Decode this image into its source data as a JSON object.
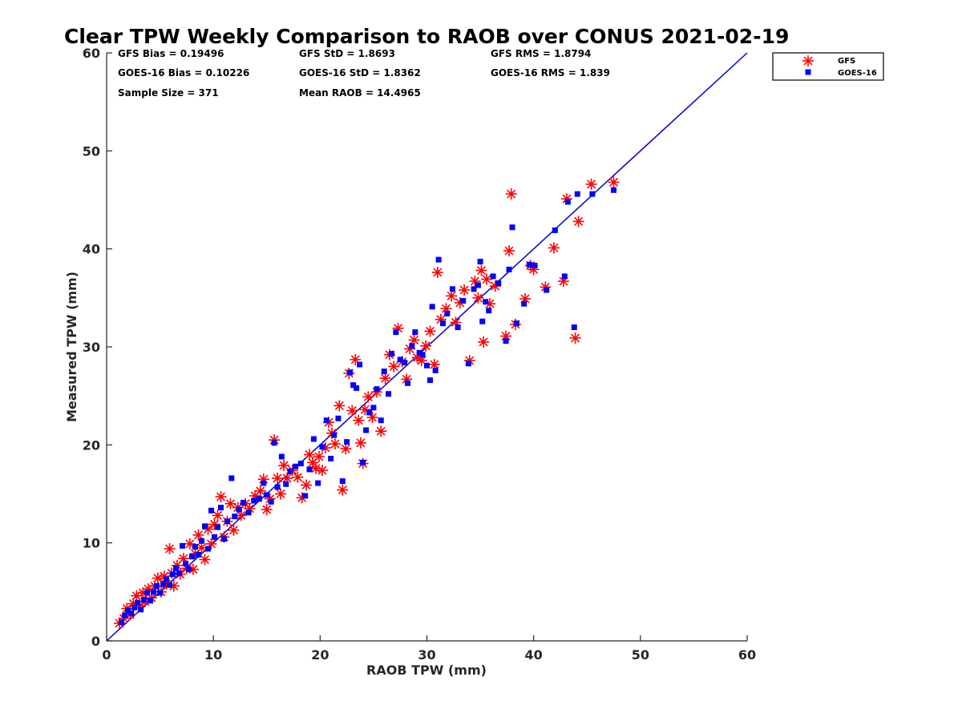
{
  "chart_data": {
    "type": "scatter",
    "title": "Clear TPW Weekly Comparison to RAOB over CONUS 2021-02-19",
    "xlabel": "RAOB TPW (mm)",
    "ylabel": "Measured TPW (mm)",
    "xlim": [
      0,
      60
    ],
    "ylim": [
      0,
      60
    ],
    "xticks": [
      "0",
      "10",
      "20",
      "30",
      "40",
      "50",
      "60"
    ],
    "yticks": [
      "0",
      "10",
      "20",
      "30",
      "40",
      "50",
      "60"
    ],
    "grid": false,
    "legend_position": "top-right (outside plot)",
    "reference_line": {
      "x": [
        0,
        60
      ],
      "y": [
        0,
        60
      ],
      "color": "#0000cc"
    },
    "stats": {
      "gfs_bias": "GFS Bias = 0.19496",
      "goes_bias": "GOES-16 Bias = 0.10226",
      "sample_size": "Sample Size = 371",
      "gfs_std": "GFS StD = 1.8693",
      "goes_std": "GOES-16 StD = 1.8362",
      "mean_raob": "Mean RAOB = 14.4965",
      "gfs_rms": "GFS RMS = 1.8794",
      "goes_rms": "GOES-16 RMS = 1.839"
    },
    "series": [
      {
        "name": "GFS",
        "marker": "asterisk",
        "color": "#ff0000",
        "points": [
          [
            1.2,
            1.8
          ],
          [
            1.6,
            2.3
          ],
          [
            1.9,
            3.3
          ],
          [
            2.2,
            2.7
          ],
          [
            2.5,
            3.8
          ],
          [
            2.8,
            4.6
          ],
          [
            3.1,
            3.6
          ],
          [
            3.4,
            4.9
          ],
          [
            3.6,
            4.0
          ],
          [
            3.9,
            5.3
          ],
          [
            4.2,
            4.4
          ],
          [
            4.5,
            5.6
          ],
          [
            4.8,
            6.4
          ],
          [
            5.1,
            5.0
          ],
          [
            5.4,
            6.6
          ],
          [
            5.6,
            5.8
          ],
          [
            5.9,
            9.4
          ],
          [
            6.1,
            6.9
          ],
          [
            6.3,
            5.6
          ],
          [
            6.6,
            7.7
          ],
          [
            6.9,
            6.8
          ],
          [
            7.2,
            8.4
          ],
          [
            7.5,
            7.4
          ],
          [
            7.8,
            9.9
          ],
          [
            8.1,
            7.3
          ],
          [
            8.3,
            8.9
          ],
          [
            8.6,
            10.8
          ],
          [
            8.9,
            9.5
          ],
          [
            9.2,
            8.3
          ],
          [
            9.5,
            11.4
          ],
          [
            9.8,
            9.9
          ],
          [
            10.1,
            11.9
          ],
          [
            10.4,
            12.8
          ],
          [
            10.7,
            14.7
          ],
          [
            11.0,
            10.6
          ],
          [
            11.3,
            12.2
          ],
          [
            11.6,
            14.0
          ],
          [
            11.9,
            11.3
          ],
          [
            12.3,
            13.6
          ],
          [
            12.6,
            12.8
          ],
          [
            13.0,
            14.0
          ],
          [
            13.4,
            13.5
          ],
          [
            13.9,
            14.8
          ],
          [
            14.4,
            15.3
          ],
          [
            14.7,
            16.5
          ],
          [
            15.0,
            13.4
          ],
          [
            15.3,
            14.5
          ],
          [
            15.7,
            20.5
          ],
          [
            16.0,
            16.6
          ],
          [
            16.3,
            15.0
          ],
          [
            16.6,
            17.9
          ],
          [
            16.9,
            16.6
          ],
          [
            17.4,
            17.4
          ],
          [
            17.9,
            16.7
          ],
          [
            18.3,
            14.6
          ],
          [
            18.7,
            15.9
          ],
          [
            19.0,
            19.0
          ],
          [
            19.3,
            18.2
          ],
          [
            19.6,
            17.6
          ],
          [
            19.9,
            18.8
          ],
          [
            20.2,
            17.4
          ],
          [
            20.5,
            19.7
          ],
          [
            20.8,
            22.3
          ],
          [
            21.1,
            21.2
          ],
          [
            21.4,
            20.1
          ],
          [
            21.8,
            24.0
          ],
          [
            22.1,
            15.4
          ],
          [
            22.4,
            19.6
          ],
          [
            22.7,
            27.3
          ],
          [
            23.0,
            23.5
          ],
          [
            23.3,
            28.7
          ],
          [
            23.6,
            22.5
          ],
          [
            23.8,
            20.2
          ],
          [
            24.0,
            18.1
          ],
          [
            24.2,
            23.6
          ],
          [
            24.5,
            24.9
          ],
          [
            24.9,
            22.8
          ],
          [
            25.3,
            25.4
          ],
          [
            25.7,
            21.4
          ],
          [
            26.1,
            26.8
          ],
          [
            26.5,
            29.2
          ],
          [
            26.9,
            28.0
          ],
          [
            27.3,
            31.9
          ],
          [
            27.7,
            28.5
          ],
          [
            28.1,
            26.7
          ],
          [
            28.4,
            29.8
          ],
          [
            28.8,
            30.7
          ],
          [
            29.1,
            28.9
          ],
          [
            29.5,
            28.6
          ],
          [
            29.9,
            30.1
          ],
          [
            30.3,
            31.6
          ],
          [
            30.7,
            28.2
          ],
          [
            31.0,
            37.6
          ],
          [
            31.3,
            32.8
          ],
          [
            31.8,
            33.9
          ],
          [
            32.3,
            35.2
          ],
          [
            32.7,
            32.5
          ],
          [
            33.1,
            34.5
          ],
          [
            33.5,
            35.8
          ],
          [
            34.0,
            28.6
          ],
          [
            34.5,
            36.7
          ],
          [
            34.8,
            35.0
          ],
          [
            35.1,
            37.8
          ],
          [
            35.3,
            30.5
          ],
          [
            35.6,
            36.9
          ],
          [
            35.9,
            34.4
          ],
          [
            36.4,
            36.2
          ],
          [
            37.4,
            31.1
          ],
          [
            37.7,
            39.8
          ],
          [
            37.9,
            45.6
          ],
          [
            38.3,
            32.3
          ],
          [
            39.2,
            34.9
          ],
          [
            39.7,
            38.3
          ],
          [
            40.0,
            37.9
          ],
          [
            41.1,
            36.1
          ],
          [
            41.9,
            40.1
          ],
          [
            42.8,
            36.7
          ],
          [
            43.1,
            45.1
          ],
          [
            43.9,
            30.9
          ],
          [
            44.2,
            42.8
          ],
          [
            45.4,
            46.6
          ],
          [
            47.5,
            46.8
          ]
        ]
      },
      {
        "name": "GOES-16",
        "marker": "square",
        "color": "#0000ff",
        "points": [
          [
            1.4,
            1.9
          ],
          [
            1.7,
            2.6
          ],
          [
            2.0,
            3.1
          ],
          [
            2.3,
            2.8
          ],
          [
            2.6,
            3.4
          ],
          [
            2.9,
            3.9
          ],
          [
            3.2,
            3.2
          ],
          [
            3.5,
            4.2
          ],
          [
            3.8,
            4.9
          ],
          [
            4.1,
            4.1
          ],
          [
            4.4,
            5.0
          ],
          [
            4.7,
            5.6
          ],
          [
            5.0,
            4.9
          ],
          [
            5.3,
            5.8
          ],
          [
            5.6,
            6.3
          ],
          [
            5.9,
            5.7
          ],
          [
            6.2,
            6.8
          ],
          [
            6.5,
            7.4
          ],
          [
            6.8,
            6.9
          ],
          [
            7.1,
            9.7
          ],
          [
            7.4,
            7.9
          ],
          [
            7.7,
            7.3
          ],
          [
            8.0,
            8.6
          ],
          [
            8.3,
            9.6
          ],
          [
            8.6,
            8.8
          ],
          [
            8.9,
            10.2
          ],
          [
            9.2,
            11.7
          ],
          [
            9.5,
            9.4
          ],
          [
            9.8,
            13.3
          ],
          [
            10.1,
            10.6
          ],
          [
            10.4,
            11.6
          ],
          [
            10.7,
            13.6
          ],
          [
            11.0,
            10.4
          ],
          [
            11.3,
            12.2
          ],
          [
            11.7,
            16.6
          ],
          [
            12.0,
            12.7
          ],
          [
            12.4,
            13.4
          ],
          [
            12.8,
            14.1
          ],
          [
            13.3,
            13.1
          ],
          [
            13.8,
            14.3
          ],
          [
            14.3,
            14.5
          ],
          [
            14.7,
            16.1
          ],
          [
            15.0,
            14.9
          ],
          [
            15.4,
            14.2
          ],
          [
            15.7,
            20.2
          ],
          [
            16.0,
            15.7
          ],
          [
            16.4,
            18.8
          ],
          [
            16.8,
            16.0
          ],
          [
            17.2,
            17.3
          ],
          [
            17.7,
            17.8
          ],
          [
            18.2,
            18.1
          ],
          [
            18.6,
            14.8
          ],
          [
            19.0,
            17.5
          ],
          [
            19.4,
            20.6
          ],
          [
            19.8,
            16.1
          ],
          [
            20.2,
            19.8
          ],
          [
            20.6,
            22.5
          ],
          [
            21.0,
            18.6
          ],
          [
            21.3,
            21.0
          ],
          [
            21.7,
            22.7
          ],
          [
            22.1,
            16.3
          ],
          [
            22.5,
            20.3
          ],
          [
            22.8,
            27.4
          ],
          [
            23.1,
            26.1
          ],
          [
            23.4,
            25.8
          ],
          [
            23.7,
            28.2
          ],
          [
            24.0,
            18.2
          ],
          [
            24.3,
            21.5
          ],
          [
            24.6,
            23.3
          ],
          [
            25.0,
            23.8
          ],
          [
            25.3,
            25.7
          ],
          [
            25.7,
            22.5
          ],
          [
            26.0,
            27.5
          ],
          [
            26.4,
            25.2
          ],
          [
            26.7,
            29.3
          ],
          [
            27.1,
            31.5
          ],
          [
            27.5,
            28.7
          ],
          [
            27.9,
            28.4
          ],
          [
            28.2,
            26.3
          ],
          [
            28.6,
            30.1
          ],
          [
            28.9,
            31.5
          ],
          [
            29.3,
            29.4
          ],
          [
            29.6,
            29.2
          ],
          [
            30.0,
            28.1
          ],
          [
            30.3,
            26.6
          ],
          [
            30.5,
            34.1
          ],
          [
            30.8,
            27.6
          ],
          [
            31.1,
            38.9
          ],
          [
            31.5,
            32.4
          ],
          [
            31.9,
            33.4
          ],
          [
            32.4,
            35.9
          ],
          [
            32.9,
            32.0
          ],
          [
            33.4,
            34.7
          ],
          [
            33.9,
            28.3
          ],
          [
            34.4,
            35.9
          ],
          [
            34.8,
            36.3
          ],
          [
            35.0,
            38.7
          ],
          [
            35.2,
            32.6
          ],
          [
            35.5,
            34.6
          ],
          [
            35.8,
            33.7
          ],
          [
            36.2,
            37.2
          ],
          [
            36.7,
            36.5
          ],
          [
            37.4,
            30.6
          ],
          [
            37.7,
            37.9
          ],
          [
            38.0,
            42.2
          ],
          [
            38.4,
            32.4
          ],
          [
            39.1,
            34.4
          ],
          [
            39.6,
            38.4
          ],
          [
            40.1,
            38.3
          ],
          [
            41.2,
            35.8
          ],
          [
            42.0,
            41.9
          ],
          [
            42.9,
            37.2
          ],
          [
            43.2,
            44.8
          ],
          [
            43.8,
            32.0
          ],
          [
            44.1,
            45.6
          ],
          [
            45.5,
            45.6
          ],
          [
            47.5,
            46.0
          ]
        ]
      }
    ]
  }
}
